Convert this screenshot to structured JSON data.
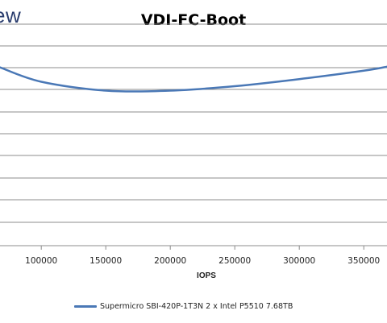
{
  "logo_text": "ew",
  "chart_data": {
    "type": "line",
    "title": "VDI-FC-Boot",
    "xlabel": "IOPS",
    "ylabel": "",
    "xlim": [
      68000,
      368000
    ],
    "ylim": [
      0,
      1
    ],
    "xticks": [
      100000,
      150000,
      200000,
      250000,
      300000,
      350000
    ],
    "tick_labels": [
      "100000",
      "150000",
      "200000",
      "250000",
      "300000",
      "350000"
    ],
    "grid": true,
    "legend": "bottom",
    "series": [
      {
        "name": "Supermicro SBI-420P-1T3N 2 x Intel P5510 7.68TB",
        "color": "#4a78b6",
        "x": [
          68000,
          100000,
          150000,
          200000,
          250000,
          300000,
          350000,
          368000
        ],
        "y": [
          0.805,
          0.74,
          0.7,
          0.7,
          0.72,
          0.752,
          0.79,
          0.808
        ]
      }
    ]
  }
}
